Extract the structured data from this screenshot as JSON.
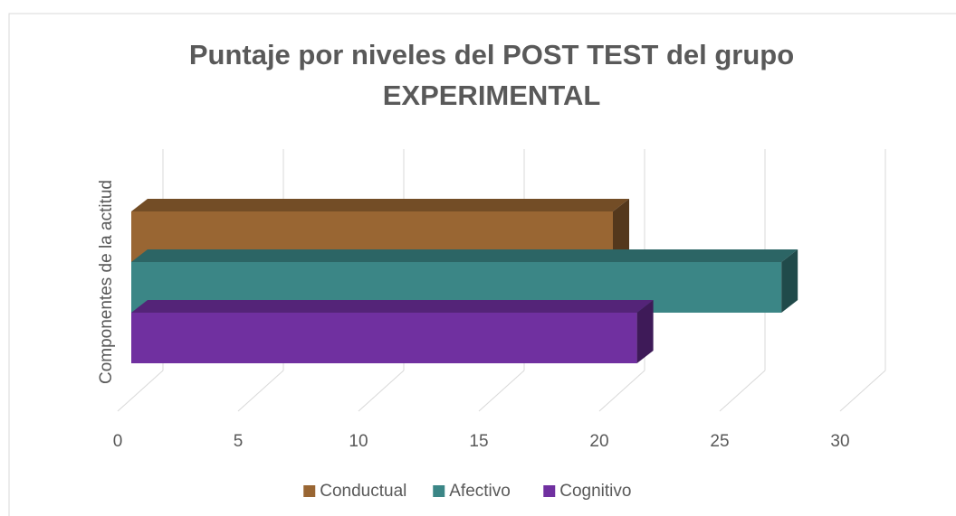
{
  "chart_data": {
    "type": "bar3d_horizontal",
    "title": "Puntaje por niveles del POST TEST del grupo EXPERIMENTAL",
    "y_axis_label": "Componentes de la actitud",
    "categories": [
      null
    ],
    "series": [
      {
        "name": "Conductual",
        "color": "#996633",
        "values": [
          20
        ]
      },
      {
        "name": "Afectivo",
        "color": "#3b8686",
        "values": [
          27
        ]
      },
      {
        "name": "Cognitivo",
        "color": "#7030a0",
        "values": [
          21
        ]
      }
    ],
    "xlim": [
      0,
      30
    ],
    "xticks": [
      0,
      5,
      10,
      15,
      20,
      25,
      30
    ],
    "grid": true,
    "legend": "bottom"
  }
}
